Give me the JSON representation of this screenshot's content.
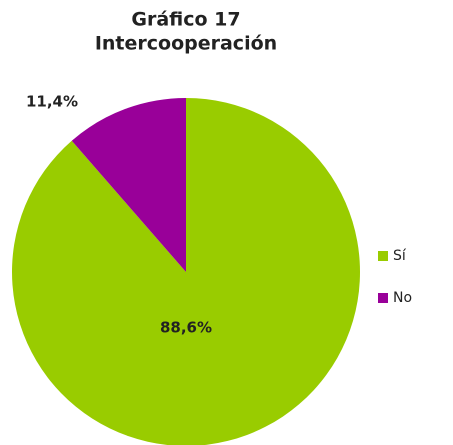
{
  "chart_data": {
    "type": "pie",
    "title": "Gráfico 17",
    "subtitle": "Intercooperación",
    "categories": [
      "Sí",
      "No"
    ],
    "values": [
      88.6,
      11.4
    ],
    "value_labels": [
      "88,6%",
      "11,4%"
    ],
    "colors": [
      "#99cc00",
      "#990099"
    ],
    "legend": "right"
  }
}
